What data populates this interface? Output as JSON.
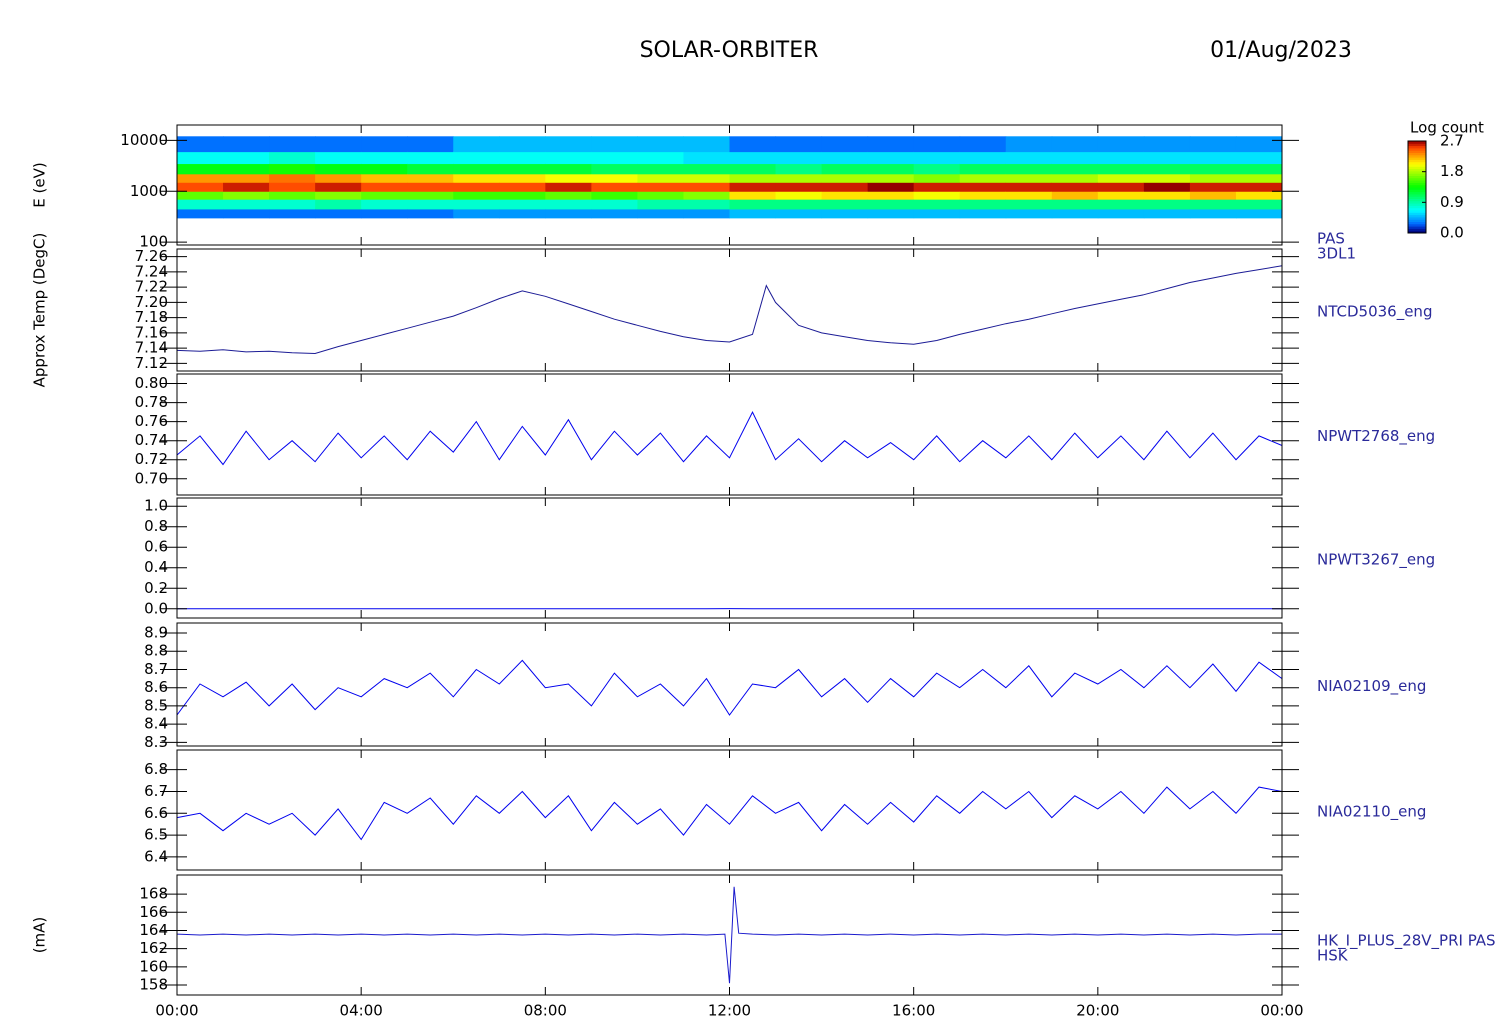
{
  "title": "SOLAR-ORBITER",
  "date": "01/Aug/2023",
  "time_axis": {
    "xlim": [
      0,
      24
    ],
    "xticks": [
      {
        "value": 0,
        "label": "00:00"
      },
      {
        "value": 4,
        "label": "04:00"
      },
      {
        "value": 8,
        "label": "08:00"
      },
      {
        "value": 12,
        "label": "12:00"
      },
      {
        "value": 16,
        "label": "16:00"
      },
      {
        "value": 20,
        "label": "20:00"
      },
      {
        "value": 24,
        "label": "00:00"
      }
    ]
  },
  "chart_data": [
    {
      "type": "heatmap",
      "ylabel": "E (eV)",
      "label": [
        "PAS",
        "3DL1"
      ],
      "ylog": true,
      "ylim": [
        88,
        20000
      ],
      "yticks": [
        100,
        1000,
        10000
      ],
      "x_edges": [
        0,
        1,
        2,
        3,
        4,
        5,
        6,
        7,
        8,
        9,
        10,
        11,
        12,
        13,
        14,
        15,
        16,
        17,
        18,
        19,
        20,
        21,
        22,
        23,
        24
      ],
      "y_edges": [
        300,
        450,
        700,
        1000,
        1500,
        2200,
        3500,
        6000,
        12000
      ],
      "z": [
        [
          0.3,
          0.8,
          1.6,
          2.5,
          2.3,
          1.3,
          0.7,
          0.3
        ],
        [
          0.3,
          0.8,
          1.7,
          2.6,
          2.3,
          1.3,
          0.7,
          0.3
        ],
        [
          0.3,
          0.8,
          1.6,
          2.5,
          2.4,
          1.4,
          0.8,
          0.3
        ],
        [
          0.3,
          0.9,
          1.7,
          2.6,
          2.3,
          1.3,
          0.7,
          0.3
        ],
        [
          0.3,
          0.8,
          1.6,
          2.5,
          2.2,
          1.3,
          0.7,
          0.3
        ],
        [
          0.3,
          0.8,
          1.6,
          2.5,
          2.2,
          1.2,
          0.7,
          0.3
        ],
        [
          0.4,
          0.8,
          1.5,
          2.5,
          2.1,
          1.2,
          0.7,
          0.5
        ],
        [
          0.4,
          0.8,
          1.5,
          2.5,
          2.1,
          1.2,
          0.7,
          0.5
        ],
        [
          0.4,
          0.8,
          1.6,
          2.6,
          2.0,
          1.2,
          0.7,
          0.5
        ],
        [
          0.4,
          0.8,
          1.5,
          2.5,
          2.0,
          1.1,
          0.7,
          0.5
        ],
        [
          0.4,
          0.9,
          1.6,
          2.5,
          1.9,
          1.1,
          0.7,
          0.5
        ],
        [
          0.4,
          0.9,
          1.7,
          2.5,
          1.9,
          1.1,
          0.6,
          0.5
        ],
        [
          0.5,
          1.0,
          2.1,
          2.6,
          1.8,
          1.1,
          0.6,
          0.3
        ],
        [
          0.5,
          1.0,
          2.0,
          2.6,
          1.8,
          1.0,
          0.6,
          0.3
        ],
        [
          0.5,
          1.0,
          2.1,
          2.6,
          1.8,
          1.1,
          0.6,
          0.3
        ],
        [
          0.5,
          1.0,
          2.1,
          2.7,
          1.8,
          1.1,
          0.6,
          0.3
        ],
        [
          0.5,
          1.0,
          2.0,
          2.6,
          1.7,
          1.0,
          0.6,
          0.3
        ],
        [
          0.5,
          1.0,
          2.1,
          2.6,
          1.8,
          1.1,
          0.6,
          0.3
        ],
        [
          0.5,
          1.0,
          2.1,
          2.6,
          1.8,
          1.1,
          0.6,
          0.4
        ],
        [
          0.5,
          1.0,
          2.2,
          2.6,
          1.8,
          1.1,
          0.6,
          0.4
        ],
        [
          0.5,
          1.0,
          2.1,
          2.6,
          1.9,
          1.1,
          0.6,
          0.4
        ],
        [
          0.5,
          1.0,
          2.1,
          2.7,
          1.9,
          1.1,
          0.6,
          0.4
        ],
        [
          0.5,
          1.0,
          2.2,
          2.6,
          1.8,
          1.1,
          0.6,
          0.4
        ],
        [
          0.5,
          1.0,
          2.1,
          2.6,
          1.8,
          1.1,
          0.6,
          0.4
        ]
      ],
      "colorbar": {
        "title": "Log count",
        "zlim": [
          0,
          2.7
        ],
        "zticks": [
          {
            "value": 0,
            "label": "0.0"
          },
          0.9,
          1.8,
          2.7
        ]
      }
    },
    {
      "type": "line",
      "ylabel": "Approx Temp (DegC)",
      "label": [
        "NTCD5036_eng"
      ],
      "color": "#1c1c96",
      "ylim": [
        7.11,
        7.27
      ],
      "yticks": [
        7.26,
        7.24,
        7.22,
        {
          "value": 7.2,
          "label": "7.20"
        },
        7.18,
        7.16,
        7.14,
        7.12
      ],
      "x": [
        0,
        0.5,
        1,
        1.5,
        2,
        2.5,
        3,
        3.5,
        4,
        4.5,
        5,
        5.5,
        6,
        6.5,
        7,
        7.5,
        8,
        8.5,
        9,
        9.5,
        10,
        10.5,
        11,
        11.5,
        12,
        12.5,
        12.8,
        13,
        13.5,
        14,
        14.5,
        15,
        15.5,
        16,
        16.5,
        17,
        17.5,
        18,
        18.5,
        19,
        19.5,
        20,
        20.5,
        21,
        21.5,
        22,
        22.5,
        23,
        23.5,
        24
      ],
      "values": [
        7.137,
        7.136,
        7.138,
        7.135,
        7.136,
        7.134,
        7.133,
        7.142,
        7.15,
        7.158,
        7.166,
        7.174,
        7.182,
        7.193,
        7.205,
        7.215,
        7.208,
        7.198,
        7.188,
        7.178,
        7.17,
        7.162,
        7.155,
        7.15,
        7.148,
        7.158,
        7.222,
        7.2,
        7.17,
        7.16,
        7.155,
        7.15,
        7.147,
        7.145,
        7.15,
        7.158,
        7.165,
        7.172,
        7.178,
        7.185,
        7.192,
        7.198,
        7.204,
        7.21,
        7.218,
        7.226,
        7.232,
        7.238,
        7.243,
        7.248
      ]
    },
    {
      "type": "line",
      "label": [
        "NPWT2768_eng"
      ],
      "color": "#0000ee",
      "ylim": [
        0.683,
        0.81
      ],
      "yticks": [
        {
          "value": 0.8,
          "label": "0.80"
        },
        0.78,
        0.76,
        0.74,
        0.72,
        {
          "value": 0.7,
          "label": "0.70"
        }
      ],
      "x": [
        0,
        0.5,
        1,
        1.5,
        2,
        2.5,
        3,
        3.5,
        4,
        4.5,
        5,
        5.5,
        6,
        6.5,
        7,
        7.5,
        8,
        8.5,
        9,
        9.5,
        10,
        10.5,
        11,
        11.5,
        12,
        12.5,
        13,
        13.5,
        14,
        14.5,
        15,
        15.5,
        16,
        16.5,
        17,
        17.5,
        18,
        18.5,
        19,
        19.5,
        20,
        20.5,
        21,
        21.5,
        22,
        22.5,
        23,
        23.5,
        24
      ],
      "values": [
        0.725,
        0.745,
        0.715,
        0.75,
        0.72,
        0.74,
        0.718,
        0.748,
        0.722,
        0.745,
        0.72,
        0.75,
        0.728,
        0.76,
        0.72,
        0.755,
        0.725,
        0.762,
        0.72,
        0.75,
        0.725,
        0.748,
        0.718,
        0.745,
        0.722,
        0.77,
        0.72,
        0.742,
        0.718,
        0.74,
        0.722,
        0.738,
        0.72,
        0.745,
        0.718,
        0.74,
        0.722,
        0.745,
        0.72,
        0.748,
        0.722,
        0.745,
        0.72,
        0.75,
        0.722,
        0.748,
        0.72,
        0.745,
        0.735
      ]
    },
    {
      "type": "line",
      "label": [
        "NPWT3267_eng"
      ],
      "color": "#0000ee",
      "ylim": [
        -0.09,
        1.08
      ],
      "yticks": [
        {
          "value": 1,
          "label": "1.0"
        },
        0.8,
        0.6,
        0.4,
        0.2,
        {
          "value": 0,
          "label": "0.0"
        }
      ],
      "x": [
        0,
        0.5,
        1,
        1.5,
        2,
        2.5,
        3,
        3.5,
        4,
        4.5,
        5,
        5.5,
        6,
        6.5,
        7,
        7.5,
        8,
        8.5,
        9,
        9.5,
        10,
        10.5,
        11,
        11.5,
        12,
        12.5,
        13,
        13.5,
        14,
        14.5,
        15,
        15.5,
        16,
        16.5,
        17,
        17.5,
        18,
        18.5,
        19,
        19.5,
        20,
        20.5,
        21,
        21.5,
        22,
        22.5,
        23,
        23.5,
        24
      ],
      "values": [
        0,
        0,
        0,
        0,
        0,
        0,
        0,
        0,
        0,
        0,
        0,
        0,
        0,
        0,
        0,
        0,
        0,
        0,
        0,
        0,
        0,
        0,
        0,
        0,
        0.002,
        0,
        0,
        0,
        0,
        0,
        0,
        0,
        0,
        0,
        0,
        0,
        0,
        0,
        0,
        0,
        0,
        0,
        0,
        0,
        0,
        0,
        0,
        0,
        0
      ]
    },
    {
      "type": "line",
      "label": [
        "NIA02109_eng"
      ],
      "color": "#0000ee",
      "ylim": [
        8.28,
        8.955
      ],
      "yticks": [
        8.9,
        8.8,
        8.7,
        8.6,
        8.5,
        8.4,
        8.3
      ],
      "x": [
        0,
        0.5,
        1,
        1.5,
        2,
        2.5,
        3,
        3.5,
        4,
        4.5,
        5,
        5.5,
        6,
        6.5,
        7,
        7.5,
        8,
        8.5,
        9,
        9.5,
        10,
        10.5,
        11,
        11.5,
        12,
        12.5,
        13,
        13.5,
        14,
        14.5,
        15,
        15.5,
        16,
        16.5,
        17,
        17.5,
        18,
        18.5,
        19,
        19.5,
        20,
        20.5,
        21,
        21.5,
        22,
        22.5,
        23,
        23.5,
        24
      ],
      "values": [
        8.45,
        8.62,
        8.55,
        8.63,
        8.5,
        8.62,
        8.48,
        8.6,
        8.55,
        8.65,
        8.6,
        8.68,
        8.55,
        8.7,
        8.62,
        8.75,
        8.6,
        8.62,
        8.5,
        8.68,
        8.55,
        8.62,
        8.5,
        8.65,
        8.45,
        8.62,
        8.6,
        8.7,
        8.55,
        8.65,
        8.52,
        8.65,
        8.55,
        8.68,
        8.6,
        8.7,
        8.6,
        8.72,
        8.55,
        8.68,
        8.62,
        8.7,
        8.6,
        8.72,
        8.6,
        8.73,
        8.58,
        8.74,
        8.65
      ]
    },
    {
      "type": "line",
      "label": [
        "NIA02110_eng"
      ],
      "color": "#0000ee",
      "ylim": [
        6.34,
        6.89
      ],
      "yticks": [
        6.8,
        6.7,
        6.6,
        6.5,
        6.4
      ],
      "x": [
        0,
        0.5,
        1,
        1.5,
        2,
        2.5,
        3,
        3.5,
        4,
        4.5,
        5,
        5.5,
        6,
        6.5,
        7,
        7.5,
        8,
        8.5,
        9,
        9.5,
        10,
        10.5,
        11,
        11.5,
        12,
        12.5,
        13,
        13.5,
        14,
        14.5,
        15,
        15.5,
        16,
        16.5,
        17,
        17.5,
        18,
        18.5,
        19,
        19.5,
        20,
        20.5,
        21,
        21.5,
        22,
        22.5,
        23,
        23.5,
        24
      ],
      "values": [
        6.58,
        6.6,
        6.52,
        6.6,
        6.55,
        6.6,
        6.5,
        6.62,
        6.48,
        6.65,
        6.6,
        6.67,
        6.55,
        6.68,
        6.6,
        6.7,
        6.58,
        6.68,
        6.52,
        6.65,
        6.55,
        6.62,
        6.5,
        6.64,
        6.55,
        6.68,
        6.6,
        6.65,
        6.52,
        6.64,
        6.55,
        6.65,
        6.56,
        6.68,
        6.6,
        6.7,
        6.62,
        6.7,
        6.58,
        6.68,
        6.62,
        6.7,
        6.6,
        6.72,
        6.62,
        6.7,
        6.6,
        6.72,
        6.7
      ]
    },
    {
      "type": "line",
      "ylabel": "(mA)",
      "label": [
        "HK_I_PLUS_28V_PRI PAS",
        "HSK"
      ],
      "color": "#1a1acc",
      "ylim": [
        156.9,
        170.1
      ],
      "yticks": [
        168,
        166,
        164,
        162,
        160,
        158
      ],
      "x": [
        0,
        0.5,
        1,
        1.5,
        2,
        2.5,
        3,
        3.5,
        4,
        4.5,
        5,
        5.5,
        6,
        6.5,
        7,
        7.5,
        8,
        8.5,
        9,
        9.5,
        10,
        10.5,
        11,
        11.5,
        11.9,
        12,
        12.1,
        12.2,
        12.5,
        13,
        13.5,
        14,
        14.5,
        15,
        15.5,
        16,
        16.5,
        17,
        17.5,
        18,
        18.5,
        19,
        19.5,
        20,
        20.5,
        21,
        21.5,
        22,
        22.5,
        23,
        23.5,
        24
      ],
      "values": [
        163.6,
        163.5,
        163.6,
        163.5,
        163.6,
        163.5,
        163.6,
        163.5,
        163.6,
        163.5,
        163.6,
        163.5,
        163.6,
        163.5,
        163.6,
        163.5,
        163.6,
        163.5,
        163.6,
        163.5,
        163.6,
        163.5,
        163.6,
        163.5,
        163.6,
        158.2,
        168.8,
        163.7,
        163.6,
        163.5,
        163.6,
        163.5,
        163.6,
        163.5,
        163.6,
        163.5,
        163.6,
        163.5,
        163.6,
        163.5,
        163.6,
        163.5,
        163.6,
        163.5,
        163.6,
        163.5,
        163.6,
        163.5,
        163.6,
        163.5,
        163.6,
        163.6
      ]
    }
  ]
}
